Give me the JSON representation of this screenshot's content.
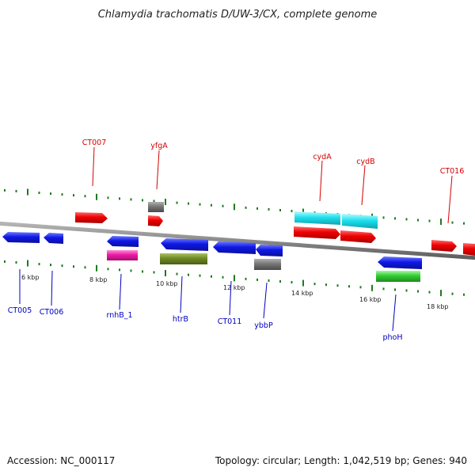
{
  "title": "Chlamydia trachomatis D/UW-3/CX, complete genome",
  "footer": {
    "accession": "Accession: NC_000117",
    "summary": "Topology: circular; Length: 1,042,519 bp; Genes: 940"
  },
  "colors": {
    "forward_label": "#d40000",
    "reverse_label": "#0000c0",
    "backbone": "#8a8a8a",
    "tick": "#1f7a1f",
    "red": "#ee0000",
    "blue": "#0f18e6",
    "cyan": "#1ee0ee",
    "gray": "#777777",
    "magenta": "#ee1aa8",
    "olive": "#6f8a26",
    "green": "#33cc33"
  },
  "scale_labels": [
    "6 kbp",
    "8 kbp",
    "10 kbp",
    "12 kbp",
    "14 kbp",
    "16 kbp",
    "18 kbp"
  ],
  "forward_labels": [
    "CT007",
    "yfgA",
    "cydA",
    "cydB",
    "CT016"
  ],
  "reverse_labels": [
    "CT005",
    "CT006",
    "rnhB_1",
    "htrB",
    "CT011",
    "ybbP",
    "phoH"
  ]
}
